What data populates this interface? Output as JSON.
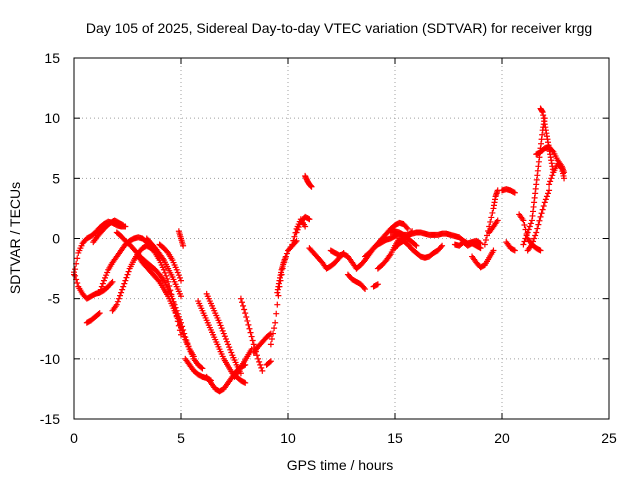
{
  "chart_data": {
    "type": "scatter",
    "title": "Day 105 of 2025, Sidereal Day-to-day VTEC variation (SDTVAR) for receiver krgg",
    "xlabel": "GPS time / hours",
    "ylabel": "SDTVAR / TECUs",
    "xlim": [
      0,
      25
    ],
    "ylim": [
      -15,
      15
    ],
    "xticks": [
      "0",
      "5",
      "10",
      "15",
      "20",
      "25"
    ],
    "yticks": [
      "-15",
      "-10",
      "-5",
      "0",
      "5",
      "10",
      "15"
    ],
    "grid": true,
    "marker": "+",
    "color": "#ff0000",
    "series": [
      {
        "name": "arc1",
        "x": [
          0.0,
          0.2,
          0.4,
          0.6,
          0.8,
          1.0,
          1.2,
          1.4,
          1.6,
          1.8,
          2.0,
          2.2,
          2.4
        ],
        "y": [
          -3.0,
          -1.2,
          -0.4,
          0.0,
          0.2,
          0.5,
          0.9,
          1.2,
          1.4,
          1.3,
          1.1,
          1.0,
          1.0
        ]
      },
      {
        "name": "arc2",
        "x": [
          0.0,
          0.2,
          0.4,
          0.6,
          0.8,
          1.0,
          1.2,
          1.4,
          1.6,
          1.8
        ],
        "y": [
          -2.8,
          -4.0,
          -4.6,
          -5.0,
          -4.8,
          -4.6,
          -4.5,
          -4.3,
          -4.0,
          -3.6
        ]
      },
      {
        "name": "arc3",
        "x": [
          0.9,
          1.1,
          1.3,
          1.5,
          1.7,
          1.9,
          2.1,
          2.3
        ],
        "y": [
          -0.3,
          0.2,
          0.6,
          1.0,
          1.3,
          1.5,
          1.3,
          1.1
        ]
      },
      {
        "name": "arc4",
        "x": [
          0.6,
          0.8,
          1.0,
          1.2
        ],
        "y": [
          -7.0,
          -6.8,
          -6.5,
          -6.2
        ]
      },
      {
        "name": "arc5",
        "x": [
          1.8,
          2.0,
          2.2,
          2.4,
          2.6,
          2.8,
          3.0,
          3.2,
          3.4,
          3.6,
          3.8,
          4.0,
          4.2,
          4.4,
          4.6,
          4.8,
          5.0
        ],
        "y": [
          -6.0,
          -5.5,
          -4.5,
          -3.5,
          -2.5,
          -1.8,
          -1.2,
          -0.8,
          -0.6,
          -0.8,
          -1.2,
          -1.8,
          -2.6,
          -3.6,
          -5.0,
          -6.5,
          -8.0
        ]
      },
      {
        "name": "arc6",
        "x": [
          1.2,
          1.4,
          1.6,
          1.8,
          2.0,
          2.2,
          2.4,
          2.6,
          2.8,
          3.0,
          3.2,
          3.4,
          3.6,
          3.8
        ],
        "y": [
          -4.5,
          -3.5,
          -2.6,
          -2.0,
          -1.5,
          -1.0,
          -0.5,
          -0.2,
          0.0,
          0.1,
          0.0,
          -0.3,
          -0.6,
          -1.0
        ]
      },
      {
        "name": "arc7",
        "x": [
          2.0,
          2.2,
          2.4,
          2.6,
          2.8,
          3.0,
          3.2,
          3.4,
          3.6,
          3.8,
          4.0,
          4.2,
          4.4,
          4.6,
          4.8,
          5.0,
          5.2,
          5.4,
          5.6,
          5.8,
          6.0
        ],
        "y": [
          0.5,
          0.2,
          -0.2,
          -0.5,
          -0.9,
          -1.3,
          -1.7,
          -2.0,
          -2.3,
          -2.6,
          -3.0,
          -3.5,
          -4.2,
          -5.0,
          -6.0,
          -7.0,
          -8.2,
          -9.2,
          -10.0,
          -10.5,
          -10.8
        ]
      },
      {
        "name": "arc8",
        "x": [
          3.0,
          3.2,
          3.4,
          3.6,
          3.8,
          4.0,
          4.2,
          4.4,
          4.6,
          4.8,
          5.0,
          5.2,
          5.4,
          5.6
        ],
        "y": [
          -1.5,
          -2.0,
          -2.4,
          -2.8,
          -3.2,
          -3.6,
          -4.2,
          -4.8,
          -5.6,
          -6.4,
          -7.4,
          -8.4,
          -9.2,
          -9.8
        ]
      },
      {
        "name": "arc9",
        "x": [
          3.4,
          3.6,
          3.8,
          4.0,
          4.2,
          4.4,
          4.6,
          4.8,
          5.0
        ],
        "y": [
          0.0,
          -0.4,
          -0.8,
          -1.3,
          -1.8,
          -2.5,
          -3.2,
          -4.0,
          -4.8
        ]
      },
      {
        "name": "arc10",
        "x": [
          4.0,
          4.2,
          4.4,
          4.6,
          4.8,
          5.0
        ],
        "y": [
          -0.5,
          -0.8,
          -1.2,
          -1.8,
          -2.6,
          -3.5
        ]
      },
      {
        "name": "arc11",
        "x": [
          4.9,
          5.0,
          5.1
        ],
        "y": [
          0.6,
          0.0,
          -0.6
        ]
      },
      {
        "name": "arc12",
        "x": [
          5.2,
          5.4,
          5.6,
          5.8,
          6.0,
          6.2,
          6.4
        ],
        "y": [
          -10.0,
          -10.5,
          -11.0,
          -11.3,
          -11.5,
          -11.6,
          -11.8
        ]
      },
      {
        "name": "arc13",
        "x": [
          6.2,
          6.4,
          6.6,
          6.8,
          7.0,
          7.2,
          7.4,
          7.6,
          7.8,
          8.0
        ],
        "y": [
          -11.5,
          -12.0,
          -12.5,
          -12.7,
          -12.5,
          -12.0,
          -11.5,
          -11.0,
          -10.7,
          -10.5
        ]
      },
      {
        "name": "arc14",
        "x": [
          6.2,
          6.4,
          6.6,
          6.8,
          7.0,
          7.2,
          7.4,
          7.6,
          7.8
        ],
        "y": [
          -4.6,
          -5.4,
          -6.2,
          -7.0,
          -7.9,
          -8.8,
          -9.7,
          -10.5,
          -11.2
        ]
      },
      {
        "name": "arc15",
        "x": [
          5.8,
          6.0,
          6.2,
          6.4,
          6.6,
          6.8,
          7.0,
          7.2,
          7.4,
          7.6,
          7.8,
          8.0
        ],
        "y": [
          -5.2,
          -6.0,
          -6.8,
          -7.6,
          -8.4,
          -9.2,
          -10.0,
          -10.6,
          -11.2,
          -11.5,
          -11.8,
          -12.0
        ]
      },
      {
        "name": "arc16",
        "x": [
          7.8,
          8.0,
          8.2,
          8.4,
          8.6,
          8.8
        ],
        "y": [
          -5.0,
          -6.2,
          -7.5,
          -8.8,
          -10.0,
          -11.0
        ]
      },
      {
        "name": "arc17",
        "x": [
          7.5,
          7.7,
          7.9,
          8.1,
          8.3
        ],
        "y": [
          -11.5,
          -11.0,
          -10.4,
          -9.8,
          -9.2
        ]
      },
      {
        "name": "arc18",
        "x": [
          8.4,
          8.6,
          8.8,
          9.0,
          9.2
        ],
        "y": [
          -9.5,
          -9.0,
          -8.6,
          -8.2,
          -7.9
        ]
      },
      {
        "name": "arc19",
        "x": [
          9.0,
          9.2
        ],
        "y": [
          -10.5,
          -10.2
        ]
      },
      {
        "name": "arc20",
        "x": [
          9.2,
          9.4,
          9.6,
          9.8,
          10.0,
          10.2,
          10.4
        ],
        "y": [
          -8.8,
          -7.0,
          -4.0,
          -2.0,
          -1.0,
          -0.6,
          -0.2
        ]
      },
      {
        "name": "arc21",
        "x": [
          9.5,
          9.6,
          9.7,
          9.8,
          9.9
        ],
        "y": [
          -4.5,
          -3.5,
          -2.6,
          -2.0,
          -1.5
        ]
      },
      {
        "name": "arc22",
        "x": [
          10.4,
          10.6,
          10.8,
          11.0
        ],
        "y": [
          0.5,
          1.4,
          1.8,
          1.6
        ]
      },
      {
        "name": "arc23",
        "x": [
          10.2,
          10.4,
          10.6,
          10.8
        ],
        "y": [
          -0.5,
          0.8,
          1.6,
          1.0
        ]
      },
      {
        "name": "arc24",
        "x": [
          10.8,
          10.9,
          11.0,
          11.1
        ],
        "y": [
          5.2,
          4.8,
          4.5,
          4.3
        ]
      },
      {
        "name": "arc25",
        "x": [
          11.0,
          11.2,
          11.4,
          11.6,
          11.8,
          12.0,
          12.2,
          12.4,
          12.6
        ],
        "y": [
          -0.8,
          -1.2,
          -1.6,
          -2.0,
          -2.5,
          -2.3,
          -2.0,
          -1.6,
          -1.2
        ]
      },
      {
        "name": "arc26",
        "x": [
          12.0,
          12.2,
          12.4,
          12.6,
          12.8,
          13.0,
          13.2
        ],
        "y": [
          -1.0,
          -1.2,
          -1.4,
          -1.3,
          -1.5,
          -2.0,
          -2.5
        ]
      },
      {
        "name": "arc27",
        "x": [
          12.8,
          13.0,
          13.2,
          13.4,
          13.6
        ],
        "y": [
          -3.0,
          -3.4,
          -3.6,
          -3.8,
          -4.2
        ]
      },
      {
        "name": "arc28",
        "x": [
          13.2,
          13.4,
          13.6,
          13.8,
          14.0,
          14.2,
          14.4,
          14.6,
          14.8,
          15.0,
          15.2,
          15.4,
          15.6
        ],
        "y": [
          -2.5,
          -2.2,
          -1.8,
          -1.3,
          -0.8,
          -0.4,
          0.0,
          0.4,
          0.8,
          1.1,
          1.3,
          1.2,
          0.8
        ]
      },
      {
        "name": "arc29",
        "x": [
          13.6,
          13.8,
          14.0,
          14.2,
          14.4,
          14.6,
          14.8,
          15.0,
          15.2,
          15.4,
          15.6,
          15.8,
          16.0
        ],
        "y": [
          -1.5,
          -1.2,
          -0.8,
          -0.5,
          -0.3,
          -0.1,
          0.0,
          0.2,
          0.4,
          0.3,
          0.0,
          -0.3,
          -0.6
        ]
      },
      {
        "name": "arc30",
        "x": [
          14.2,
          14.4,
          14.6,
          14.8,
          15.0,
          15.2,
          15.4,
          15.6,
          15.8,
          16.0,
          16.2,
          16.4,
          16.6,
          16.8,
          17.0,
          17.2
        ],
        "y": [
          -2.5,
          -2.2,
          -1.8,
          -1.3,
          -0.6,
          0.0,
          -0.2,
          -0.5,
          -0.9,
          -1.2,
          -1.5,
          -1.6,
          -1.5,
          -1.2,
          -1.0,
          -0.6
        ]
      },
      {
        "name": "arc31",
        "x": [
          14.8,
          15.0,
          15.2,
          15.4,
          15.6,
          15.8,
          16.0,
          16.2,
          16.4,
          16.6,
          16.8,
          17.0,
          17.2,
          17.4,
          17.6,
          17.8,
          18.0,
          18.2,
          18.4,
          18.6,
          18.8,
          19.0
        ],
        "y": [
          0.5,
          0.6,
          0.5,
          0.3,
          0.3,
          0.4,
          0.5,
          0.5,
          0.4,
          0.3,
          0.3,
          0.3,
          0.4,
          0.4,
          0.3,
          0.2,
          0.1,
          -0.2,
          -0.4,
          -0.3,
          -0.2,
          -0.4
        ]
      },
      {
        "name": "arc32",
        "x": [
          14.0,
          14.2
        ],
        "y": [
          -4.0,
          -3.8
        ]
      },
      {
        "name": "arc33",
        "x": [
          15.0,
          15.2,
          15.4,
          15.6,
          15.8
        ],
        "y": [
          -0.8,
          -0.4,
          -0.2,
          0.2,
          0.6
        ]
      },
      {
        "name": "arc34",
        "x": [
          17.8,
          18.0,
          18.2,
          18.4,
          18.6,
          18.8,
          19.0
        ],
        "y": [
          -0.5,
          -0.6,
          -0.3,
          -0.6,
          -0.4,
          -0.6,
          -0.8
        ]
      },
      {
        "name": "arc35",
        "x": [
          18.6,
          18.8,
          19.0,
          19.2,
          19.4,
          19.6
        ],
        "y": [
          -1.5,
          -2.0,
          -2.4,
          -2.2,
          -1.6,
          -1.0
        ]
      },
      {
        "name": "arc36",
        "x": [
          19.2,
          19.4,
          19.6,
          19.7,
          19.8
        ],
        "y": [
          -0.5,
          1.0,
          2.5,
          3.5,
          4.0
        ]
      },
      {
        "name": "arc37",
        "x": [
          19.4,
          19.6,
          19.8
        ],
        "y": [
          0.5,
          1.0,
          1.5
        ]
      },
      {
        "name": "arc38",
        "x": [
          20.0,
          20.2,
          20.4,
          20.6
        ],
        "y": [
          4.0,
          4.1,
          4.0,
          3.8
        ]
      },
      {
        "name": "arc39",
        "x": [
          20.2,
          20.4,
          20.6
        ],
        "y": [
          -0.3,
          -0.8,
          -1.0
        ]
      },
      {
        "name": "arc40",
        "x": [
          20.8,
          21.0,
          21.2,
          21.4,
          21.6,
          21.8
        ],
        "y": [
          2.0,
          1.5,
          0.0,
          -0.5,
          -0.8,
          -1.0
        ]
      },
      {
        "name": "arc41",
        "x": [
          21.0,
          21.2,
          21.4,
          21.5,
          21.6,
          21.7,
          21.8,
          21.9,
          22.0
        ],
        "y": [
          -0.5,
          0.5,
          1.5,
          3.0,
          4.5,
          6.0,
          7.5,
          9.0,
          10.0
        ]
      },
      {
        "name": "arc42",
        "x": [
          21.8,
          21.9,
          22.0,
          22.1,
          22.2,
          22.3,
          22.4
        ],
        "y": [
          10.8,
          10.5,
          9.5,
          8.5,
          7.5,
          6.5,
          5.5
        ]
      },
      {
        "name": "arc43",
        "x": [
          21.6,
          21.8,
          22.0,
          22.2,
          22.4,
          22.6,
          22.8,
          22.9
        ],
        "y": [
          7.0,
          7.2,
          7.5,
          7.6,
          7.2,
          6.5,
          6.0,
          5.5
        ]
      },
      {
        "name": "arc44",
        "x": [
          21.2,
          21.4,
          21.6,
          21.8,
          22.0,
          22.2
        ],
        "y": [
          -1.0,
          -0.5,
          0.5,
          1.8,
          3.0,
          4.0
        ]
      },
      {
        "name": "arc45",
        "x": [
          22.2,
          22.4,
          22.6,
          22.8,
          22.9
        ],
        "y": [
          4.5,
          5.5,
          6.2,
          5.8,
          5.0
        ]
      }
    ]
  }
}
